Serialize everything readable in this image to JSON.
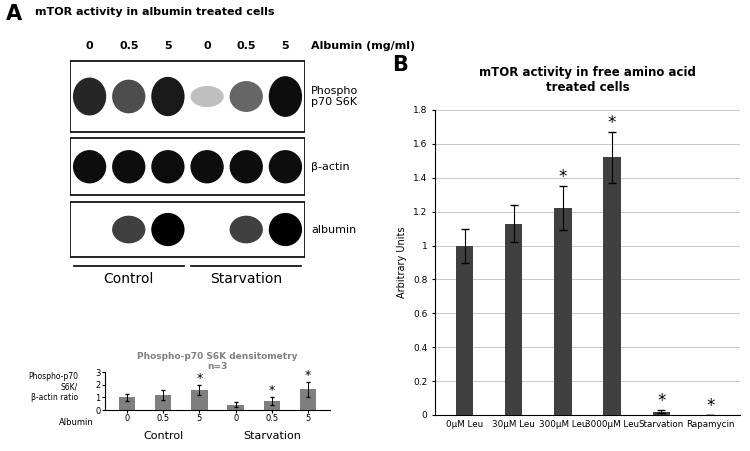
{
  "panel_labels": [
    "A",
    "B"
  ],
  "blot": {
    "title": "mTOR activity in albumin treated cells",
    "lane_header": "Albumin (mg/ml)",
    "lanes": [
      "0",
      "0.5",
      "5",
      "0",
      "0.5",
      "5"
    ],
    "groups": [
      {
        "name": "Control",
        "size": 3
      },
      {
        "name": "Starvation",
        "size": 3
      }
    ],
    "rows": [
      {
        "label": "Phospho\np70 S6K",
        "intensities": [
          0.85,
          0.7,
          0.9,
          0.25,
          0.6,
          0.95
        ]
      },
      {
        "label": "β-actin",
        "intensities": [
          0.95,
          0.95,
          0.95,
          0.95,
          0.95,
          0.95
        ]
      },
      {
        "label": "albumin",
        "intensities": [
          0.0,
          0.75,
          1.0,
          0.0,
          0.75,
          1.0
        ]
      }
    ]
  },
  "chart_data": [
    {
      "type": "bar",
      "title": "Phospho-p70 S6K densitometry\nn=3",
      "ylabel": "Phospho-p70\nS6K/\nβ-actin ratio",
      "xlabel": "Albumin",
      "categories": [
        "0",
        "0.5",
        "5",
        "0",
        "0.5",
        "5"
      ],
      "groups": [
        {
          "name": "Control",
          "size": 3
        },
        {
          "name": "Starvation",
          "size": 3
        }
      ],
      "values": [
        1.0,
        1.2,
        1.6,
        0.4,
        0.7,
        1.65
      ],
      "errors": [
        0.25,
        0.4,
        0.4,
        0.2,
        0.3,
        0.6
      ],
      "annotations": [
        {
          "index": 2,
          "text": "*"
        },
        {
          "index": 4,
          "text": "*"
        },
        {
          "index": 5,
          "text": "*"
        }
      ],
      "color": "#7f7f7f",
      "ylim": [
        0,
        3
      ],
      "yticks": [
        0,
        1,
        2,
        3
      ]
    },
    {
      "type": "bar",
      "title": "mTOR activity in free amino acid\ntreated cells",
      "ylabel": "Arbitrary Units",
      "categories": [
        "0µM Leu",
        "30µM Leu",
        "300µM Leu",
        "3000µM Leu",
        "Starvation",
        "Rapamycin"
      ],
      "values": [
        1.0,
        1.13,
        1.22,
        1.52,
        0.02,
        0.0
      ],
      "errors": [
        0.1,
        0.11,
        0.13,
        0.15,
        0.01,
        0.0
      ],
      "annotations": [
        {
          "index": 2,
          "text": "*"
        },
        {
          "index": 3,
          "text": "*"
        },
        {
          "index": 4,
          "text": "*"
        },
        {
          "index": 5,
          "text": "*"
        }
      ],
      "color": "#404040",
      "ylim": [
        0,
        1.8
      ],
      "yticks": [
        0,
        0.2,
        0.4,
        0.6,
        0.8,
        1,
        1.2,
        1.4,
        1.6,
        1.8
      ],
      "grid": true
    }
  ]
}
